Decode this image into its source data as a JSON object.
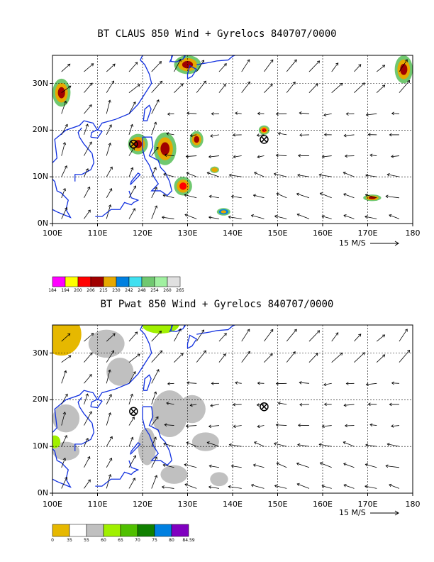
{
  "panels": [
    {
      "title": "BT CLAUS 850 Wind + Gyrelocs 840707/0000",
      "lon_labels": [
        "100E",
        "110E",
        "120E",
        "130E",
        "140E",
        "150E",
        "160E",
        "170E",
        "180"
      ],
      "lat_labels": [
        "0N",
        "10N",
        "20N",
        "30N"
      ],
      "ref_vector_label": "15 M/S",
      "colorbar": {
        "colors": [
          "#ff00ff",
          "#ffff00",
          "#ff0000",
          "#a00000",
          "#e6a800",
          "#0080e0",
          "#40e0f0",
          "#70c870",
          "#a0f0a0",
          "#e0e0e0"
        ],
        "labels": [
          "184",
          "194",
          "200",
          "206",
          "215",
          "230",
          "242",
          "248",
          "254",
          "260",
          "265"
        ]
      },
      "markers": [
        {
          "lon": 118,
          "lat": 17
        },
        {
          "lon": 147,
          "lat": 18
        }
      ]
    },
    {
      "title": "BT Pwat 850 Wind + Gyrelocs 840707/0000",
      "lon_labels": [
        "100E",
        "110E",
        "120E",
        "130E",
        "140E",
        "150E",
        "160E",
        "170E",
        "180"
      ],
      "lat_labels": [
        "0N",
        "10N",
        "20N",
        "30N"
      ],
      "ref_vector_label": "15 M/S",
      "colorbar": {
        "colors": [
          "#e6b800",
          "#ffffff",
          "#c0c0c0",
          "#a0f000",
          "#50c000",
          "#108000",
          "#0080e0",
          "#8000c0"
        ],
        "labels": [
          "0",
          "35",
          "55",
          "60",
          "65",
          "70",
          "75",
          "80",
          "84.59"
        ]
      },
      "markers": [
        {
          "lon": 118,
          "lat": 17.5
        },
        {
          "lon": 147,
          "lat": 18.5
        }
      ]
    }
  ]
}
